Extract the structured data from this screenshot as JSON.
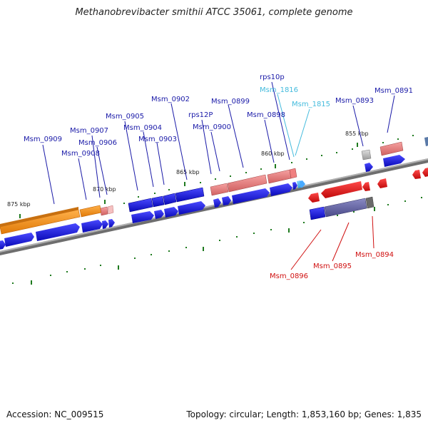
{
  "title": "Methanobrevibacter smithii ATCC 35061, complete genome",
  "footer": {
    "accession": "Accession: NC_009515",
    "summary": "Topology: circular; Length: 1,853,160 bp; Genes: 1,835"
  },
  "colors": {
    "backbone": "#8a8a8a",
    "gene_blue": "#1212e0",
    "gene_red": "#f01414",
    "orange": "#ff9a1a",
    "pink": "#e87a7a",
    "slate": "#6464a0",
    "tick_green": "#1e7a1e",
    "label_navy": "#1a1aa8",
    "label_cyan": "#44bbdd",
    "label_red": "#d01010"
  },
  "ticks": {
    "major": [
      "875 kbp",
      "870 kbp",
      "865 kbp",
      "860 kbp",
      "855 kbp"
    ]
  },
  "gene_labels": {
    "Msm_0909": "Msm_0909",
    "Msm_0908": "Msm_0908",
    "Msm_0907": "Msm_0907",
    "Msm_0906": "Msm_0906",
    "Msm_0905": "Msm_0905",
    "Msm_0904": "Msm_0904",
    "Msm_0903": "Msm_0903",
    "Msm_0902": "Msm_0902",
    "rps12P": "rps12P",
    "Msm_0900": "Msm_0900",
    "Msm_0899": "Msm_0899",
    "Msm_0898": "Msm_0898",
    "rps10p": "rps10p",
    "Msm_1816": "Msm_1816",
    "Msm_1815": "Msm_1815",
    "Msm_0893": "Msm_0893",
    "Msm_0891": "Msm_0891",
    "Msm_0896": "Msm_0896",
    "Msm_0895": "Msm_0895",
    "Msm_0894": "Msm_0894"
  }
}
